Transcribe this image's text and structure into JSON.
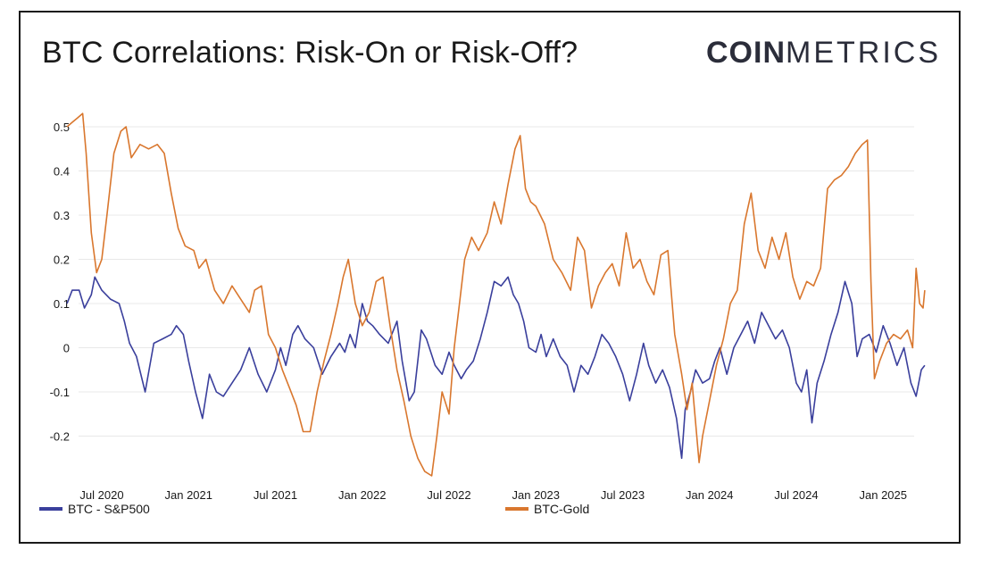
{
  "header": {
    "title": "BTC Correlations: Risk-On or Risk-Off?",
    "logo_bold": "COIN",
    "logo_thin": "METRICS"
  },
  "colors": {
    "btc_sp500": "#3a3f9c",
    "btc_gold": "#d9772e",
    "grid": "#e8e8e8",
    "text": "#1a1a1a"
  },
  "chart_data": {
    "type": "line",
    "title": "BTC Correlations: Risk-On or Risk-Off?",
    "xlabel": "",
    "ylabel": "",
    "ylim": [
      -0.3,
      0.55
    ],
    "y_ticks": [
      0.5,
      0.4,
      0.3,
      0.2,
      0.1,
      0,
      -0.1,
      -0.2
    ],
    "y_tick_labels": [
      "0.5",
      "0.4",
      "0.3",
      "0.2",
      "0.1",
      "0",
      "-0.1",
      "-0.2"
    ],
    "xlim": [
      2020.3,
      2025.4
    ],
    "x_ticks": [
      2020.5,
      2021.0,
      2021.5,
      2022.0,
      2022.5,
      2023.0,
      2023.5,
      2024.0,
      2024.5,
      2025.0
    ],
    "x_tick_labels": [
      "Jul 2020",
      "Jan 2021",
      "Jul 2021",
      "Jan 2022",
      "Jul 2022",
      "Jan 2023",
      "Jul 2023",
      "Jan 2024",
      "Jul 2024",
      "Jan 2025"
    ],
    "grid": true,
    "legend_position": "bottom",
    "series": [
      {
        "name": "BTC - S&P500",
        "color": "#3a3f9c",
        "points": [
          [
            2020.3,
            0.1
          ],
          [
            2020.33,
            0.13
          ],
          [
            2020.37,
            0.13
          ],
          [
            2020.4,
            0.09
          ],
          [
            2020.44,
            0.12
          ],
          [
            2020.46,
            0.16
          ],
          [
            2020.5,
            0.13
          ],
          [
            2020.55,
            0.11
          ],
          [
            2020.6,
            0.1
          ],
          [
            2020.63,
            0.06
          ],
          [
            2020.66,
            0.01
          ],
          [
            2020.7,
            -0.02
          ],
          [
            2020.75,
            -0.1
          ],
          [
            2020.8,
            0.01
          ],
          [
            2020.85,
            0.02
          ],
          [
            2020.9,
            0.03
          ],
          [
            2020.93,
            0.05
          ],
          [
            2020.97,
            0.03
          ],
          [
            2021.0,
            -0.03
          ],
          [
            2021.04,
            -0.1
          ],
          [
            2021.08,
            -0.16
          ],
          [
            2021.12,
            -0.06
          ],
          [
            2021.16,
            -0.1
          ],
          [
            2021.2,
            -0.11
          ],
          [
            2021.25,
            -0.08
          ],
          [
            2021.3,
            -0.05
          ],
          [
            2021.35,
            0.0
          ],
          [
            2021.4,
            -0.06
          ],
          [
            2021.45,
            -0.1
          ],
          [
            2021.5,
            -0.05
          ],
          [
            2021.53,
            0.0
          ],
          [
            2021.56,
            -0.04
          ],
          [
            2021.6,
            0.03
          ],
          [
            2021.63,
            0.05
          ],
          [
            2021.67,
            0.02
          ],
          [
            2021.72,
            0.0
          ],
          [
            2021.77,
            -0.06
          ],
          [
            2021.82,
            -0.02
          ],
          [
            2021.87,
            0.01
          ],
          [
            2021.9,
            -0.01
          ],
          [
            2021.93,
            0.03
          ],
          [
            2021.96,
            0.0
          ],
          [
            2022.0,
            0.1
          ],
          [
            2022.03,
            0.06
          ],
          [
            2022.06,
            0.05
          ],
          [
            2022.1,
            0.03
          ],
          [
            2022.15,
            0.01
          ],
          [
            2022.2,
            0.06
          ],
          [
            2022.23,
            -0.03
          ],
          [
            2022.27,
            -0.12
          ],
          [
            2022.3,
            -0.1
          ],
          [
            2022.34,
            0.04
          ],
          [
            2022.37,
            0.02
          ],
          [
            2022.42,
            -0.04
          ],
          [
            2022.46,
            -0.06
          ],
          [
            2022.5,
            -0.01
          ],
          [
            2022.53,
            -0.04
          ],
          [
            2022.57,
            -0.07
          ],
          [
            2022.6,
            -0.05
          ],
          [
            2022.64,
            -0.03
          ],
          [
            2022.68,
            0.02
          ],
          [
            2022.72,
            0.08
          ],
          [
            2022.76,
            0.15
          ],
          [
            2022.8,
            0.14
          ],
          [
            2022.84,
            0.16
          ],
          [
            2022.87,
            0.12
          ],
          [
            2022.9,
            0.1
          ],
          [
            2022.93,
            0.06
          ],
          [
            2022.96,
            0.0
          ],
          [
            2023.0,
            -0.01
          ],
          [
            2023.03,
            0.03
          ],
          [
            2023.06,
            -0.02
          ],
          [
            2023.1,
            0.02
          ],
          [
            2023.14,
            -0.02
          ],
          [
            2023.18,
            -0.04
          ],
          [
            2023.22,
            -0.1
          ],
          [
            2023.26,
            -0.04
          ],
          [
            2023.3,
            -0.06
          ],
          [
            2023.34,
            -0.02
          ],
          [
            2023.38,
            0.03
          ],
          [
            2023.42,
            0.01
          ],
          [
            2023.46,
            -0.02
          ],
          [
            2023.5,
            -0.06
          ],
          [
            2023.54,
            -0.12
          ],
          [
            2023.58,
            -0.06
          ],
          [
            2023.62,
            0.01
          ],
          [
            2023.65,
            -0.04
          ],
          [
            2023.69,
            -0.08
          ],
          [
            2023.73,
            -0.05
          ],
          [
            2023.77,
            -0.09
          ],
          [
            2023.81,
            -0.16
          ],
          [
            2023.84,
            -0.25
          ],
          [
            2023.86,
            -0.14
          ],
          [
            2023.89,
            -0.1
          ],
          [
            2023.92,
            -0.05
          ],
          [
            2023.96,
            -0.08
          ],
          [
            2024.0,
            -0.07
          ],
          [
            2024.03,
            -0.03
          ],
          [
            2024.06,
            0.0
          ],
          [
            2024.1,
            -0.06
          ],
          [
            2024.14,
            0.0
          ],
          [
            2024.18,
            0.03
          ],
          [
            2024.22,
            0.06
          ],
          [
            2024.26,
            0.01
          ],
          [
            2024.3,
            0.08
          ],
          [
            2024.34,
            0.05
          ],
          [
            2024.38,
            0.02
          ],
          [
            2024.42,
            0.04
          ],
          [
            2024.46,
            0.0
          ],
          [
            2024.5,
            -0.08
          ],
          [
            2024.53,
            -0.1
          ],
          [
            2024.56,
            -0.05
          ],
          [
            2024.59,
            -0.17
          ],
          [
            2024.62,
            -0.08
          ],
          [
            2024.66,
            -0.03
          ],
          [
            2024.7,
            0.03
          ],
          [
            2024.74,
            0.08
          ],
          [
            2024.78,
            0.15
          ],
          [
            2024.82,
            0.1
          ],
          [
            2024.85,
            -0.02
          ],
          [
            2024.88,
            0.02
          ],
          [
            2024.92,
            0.03
          ],
          [
            2024.96,
            -0.01
          ],
          [
            2025.0,
            0.05
          ],
          [
            2025.04,
            0.01
          ],
          [
            2025.08,
            -0.04
          ],
          [
            2025.12,
            0.0
          ],
          [
            2025.16,
            -0.08
          ],
          [
            2025.19,
            -0.11
          ],
          [
            2025.22,
            -0.05
          ],
          [
            2025.24,
            -0.04
          ]
        ]
      },
      {
        "name": "BTC-Gold",
        "color": "#d9772e",
        "points": [
          [
            2020.3,
            0.5
          ],
          [
            2020.33,
            0.51
          ],
          [
            2020.36,
            0.52
          ],
          [
            2020.39,
            0.53
          ],
          [
            2020.41,
            0.44
          ],
          [
            2020.44,
            0.26
          ],
          [
            2020.47,
            0.17
          ],
          [
            2020.5,
            0.2
          ],
          [
            2020.53,
            0.3
          ],
          [
            2020.57,
            0.44
          ],
          [
            2020.61,
            0.49
          ],
          [
            2020.64,
            0.5
          ],
          [
            2020.67,
            0.43
          ],
          [
            2020.72,
            0.46
          ],
          [
            2020.77,
            0.45
          ],
          [
            2020.82,
            0.46
          ],
          [
            2020.86,
            0.44
          ],
          [
            2020.9,
            0.35
          ],
          [
            2020.94,
            0.27
          ],
          [
            2020.98,
            0.23
          ],
          [
            2021.03,
            0.22
          ],
          [
            2021.06,
            0.18
          ],
          [
            2021.1,
            0.2
          ],
          [
            2021.15,
            0.13
          ],
          [
            2021.2,
            0.1
          ],
          [
            2021.25,
            0.14
          ],
          [
            2021.3,
            0.11
          ],
          [
            2021.35,
            0.08
          ],
          [
            2021.38,
            0.13
          ],
          [
            2021.42,
            0.14
          ],
          [
            2021.46,
            0.03
          ],
          [
            2021.5,
            0.0
          ],
          [
            2021.54,
            -0.05
          ],
          [
            2021.58,
            -0.09
          ],
          [
            2021.62,
            -0.13
          ],
          [
            2021.66,
            -0.19
          ],
          [
            2021.7,
            -0.19
          ],
          [
            2021.74,
            -0.1
          ],
          [
            2021.78,
            -0.03
          ],
          [
            2021.82,
            0.03
          ],
          [
            2021.86,
            0.1
          ],
          [
            2021.89,
            0.16
          ],
          [
            2021.92,
            0.2
          ],
          [
            2021.96,
            0.1
          ],
          [
            2022.0,
            0.05
          ],
          [
            2022.04,
            0.08
          ],
          [
            2022.08,
            0.15
          ],
          [
            2022.12,
            0.16
          ],
          [
            2022.16,
            0.05
          ],
          [
            2022.2,
            -0.05
          ],
          [
            2022.24,
            -0.12
          ],
          [
            2022.28,
            -0.2
          ],
          [
            2022.32,
            -0.25
          ],
          [
            2022.36,
            -0.28
          ],
          [
            2022.4,
            -0.29
          ],
          [
            2022.43,
            -0.2
          ],
          [
            2022.46,
            -0.1
          ],
          [
            2022.5,
            -0.15
          ],
          [
            2022.53,
            0.0
          ],
          [
            2022.56,
            0.1
          ],
          [
            2022.59,
            0.2
          ],
          [
            2022.63,
            0.25
          ],
          [
            2022.67,
            0.22
          ],
          [
            2022.72,
            0.26
          ],
          [
            2022.76,
            0.33
          ],
          [
            2022.8,
            0.28
          ],
          [
            2022.84,
            0.37
          ],
          [
            2022.88,
            0.45
          ],
          [
            2022.91,
            0.48
          ],
          [
            2022.94,
            0.36
          ],
          [
            2022.97,
            0.33
          ],
          [
            2023.0,
            0.32
          ],
          [
            2023.05,
            0.28
          ],
          [
            2023.1,
            0.2
          ],
          [
            2023.15,
            0.17
          ],
          [
            2023.2,
            0.13
          ],
          [
            2023.24,
            0.25
          ],
          [
            2023.28,
            0.22
          ],
          [
            2023.32,
            0.09
          ],
          [
            2023.36,
            0.14
          ],
          [
            2023.4,
            0.17
          ],
          [
            2023.44,
            0.19
          ],
          [
            2023.48,
            0.14
          ],
          [
            2023.52,
            0.26
          ],
          [
            2023.56,
            0.18
          ],
          [
            2023.6,
            0.2
          ],
          [
            2023.64,
            0.15
          ],
          [
            2023.68,
            0.12
          ],
          [
            2023.72,
            0.21
          ],
          [
            2023.76,
            0.22
          ],
          [
            2023.8,
            0.03
          ],
          [
            2023.84,
            -0.06
          ],
          [
            2023.87,
            -0.14
          ],
          [
            2023.9,
            -0.08
          ],
          [
            2023.94,
            -0.26
          ],
          [
            2023.96,
            -0.2
          ],
          [
            2024.0,
            -0.12
          ],
          [
            2024.04,
            -0.04
          ],
          [
            2024.08,
            0.02
          ],
          [
            2024.12,
            0.1
          ],
          [
            2024.16,
            0.13
          ],
          [
            2024.2,
            0.28
          ],
          [
            2024.24,
            0.35
          ],
          [
            2024.28,
            0.22
          ],
          [
            2024.32,
            0.18
          ],
          [
            2024.36,
            0.25
          ],
          [
            2024.4,
            0.2
          ],
          [
            2024.44,
            0.26
          ],
          [
            2024.48,
            0.16
          ],
          [
            2024.52,
            0.11
          ],
          [
            2024.56,
            0.15
          ],
          [
            2024.6,
            0.14
          ],
          [
            2024.64,
            0.18
          ],
          [
            2024.68,
            0.36
          ],
          [
            2024.72,
            0.38
          ],
          [
            2024.76,
            0.39
          ],
          [
            2024.8,
            0.41
          ],
          [
            2024.84,
            0.44
          ],
          [
            2024.88,
            0.46
          ],
          [
            2024.91,
            0.47
          ],
          [
            2024.93,
            0.15
          ],
          [
            2024.95,
            -0.07
          ],
          [
            2024.98,
            -0.03
          ],
          [
            2025.02,
            0.01
          ],
          [
            2025.06,
            0.03
          ],
          [
            2025.1,
            0.02
          ],
          [
            2025.14,
            0.04
          ],
          [
            2025.17,
            0.0
          ],
          [
            2025.19,
            0.18
          ],
          [
            2025.21,
            0.1
          ],
          [
            2025.23,
            0.09
          ],
          [
            2025.24,
            0.13
          ]
        ]
      }
    ]
  }
}
